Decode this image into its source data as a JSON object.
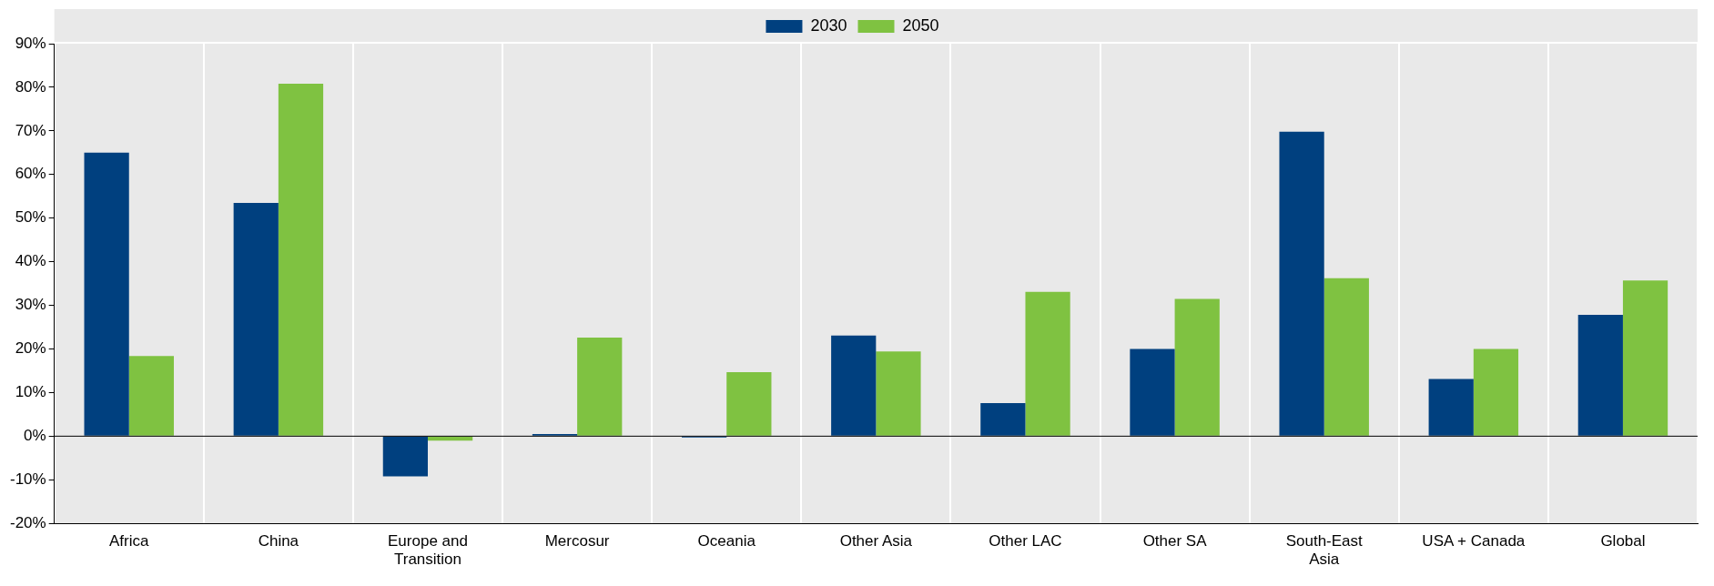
{
  "chart_data": {
    "type": "bar",
    "categories": [
      "Africa",
      "China",
      "Europe and Transition",
      "Mercosur",
      "Oceania",
      "Other Asia",
      "Other LAC",
      "Other SA",
      "South-East Asia",
      "USA + Canada",
      "Global"
    ],
    "series": [
      {
        "name": "2030",
        "color": "#00407f",
        "values": [
          65,
          53.5,
          -9.2,
          0.5,
          -0.3,
          23.1,
          7.6,
          20,
          69.8,
          13.1,
          27.8
        ]
      },
      {
        "name": "2050",
        "color": "#7fc241",
        "values": [
          18.4,
          80.8,
          -1,
          22.6,
          14.7,
          19.4,
          33.1,
          31.5,
          36.2,
          20,
          35.7
        ]
      }
    ],
    "ylim": [
      -20,
      90
    ],
    "yticks": [
      {
        "value": -20,
        "label": "-20%"
      },
      {
        "value": -10,
        "label": "-10%"
      },
      {
        "value": 0,
        "label": "0%"
      },
      {
        "value": 10,
        "label": "10%"
      },
      {
        "value": 20,
        "label": "20%"
      },
      {
        "value": 30,
        "label": "30%"
      },
      {
        "value": 40,
        "label": "40%"
      },
      {
        "value": 50,
        "label": "50%"
      },
      {
        "value": 60,
        "label": "60%"
      },
      {
        "value": 70,
        "label": "70%"
      },
      {
        "value": 80,
        "label": "80%"
      },
      {
        "value": 90,
        "label": "90%"
      }
    ],
    "grid": "x",
    "legend": "top"
  }
}
